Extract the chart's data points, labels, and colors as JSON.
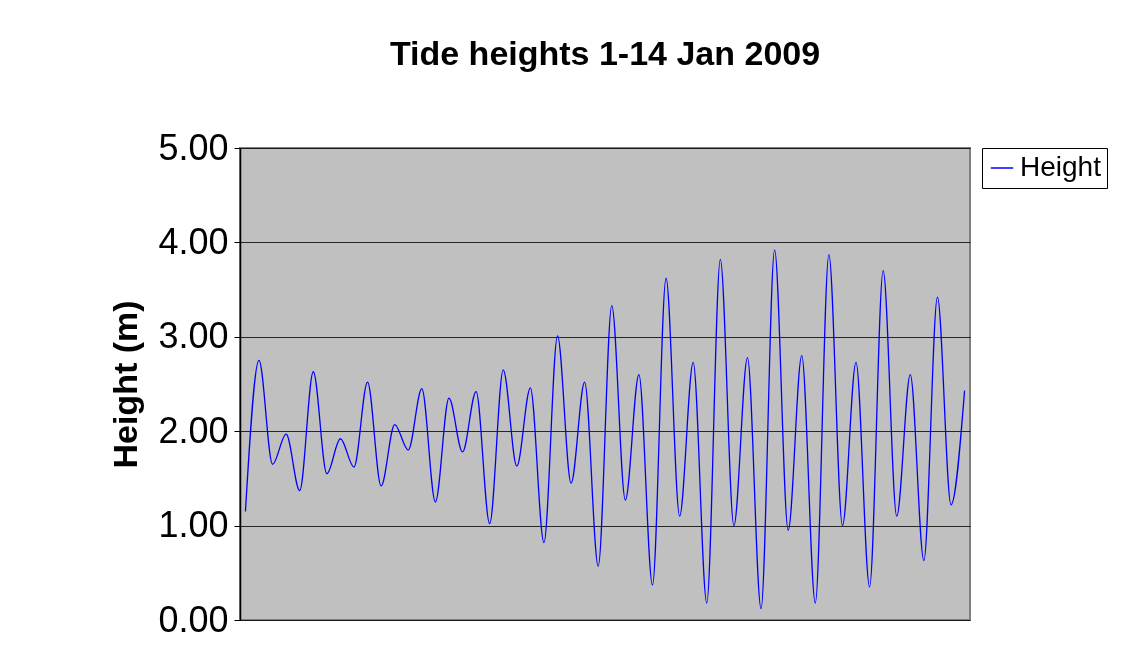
{
  "chart_data": {
    "type": "line",
    "title": "Tide heights 1-14 Jan 2009",
    "ylabel": "Height (m)",
    "categories": [
      null,
      null,
      null,
      null,
      null,
      null,
      null,
      null,
      null,
      null,
      null,
      null,
      null,
      null,
      null,
      null,
      null,
      null,
      null,
      null,
      null,
      null,
      null,
      null,
      null,
      null,
      null,
      null,
      null,
      null,
      null,
      null,
      null,
      null,
      null,
      null,
      null,
      null,
      null,
      null,
      null,
      null,
      null,
      null,
      null,
      null,
      null,
      null,
      null,
      null,
      null,
      null,
      null,
      null
    ],
    "series": [
      {
        "name": "Height",
        "color": "#0000ff",
        "values": [
          1.15,
          2.75,
          1.65,
          1.97,
          1.37,
          2.63,
          1.55,
          1.92,
          1.62,
          2.52,
          1.42,
          2.07,
          1.8,
          2.45,
          1.25,
          2.35,
          1.78,
          2.42,
          1.02,
          2.65,
          1.63,
          2.46,
          0.82,
          3.01,
          1.45,
          2.52,
          0.57,
          3.33,
          1.27,
          2.6,
          0.37,
          3.62,
          1.1,
          2.73,
          0.18,
          3.82,
          1.0,
          2.78,
          0.12,
          3.92,
          0.95,
          2.8,
          0.18,
          3.87,
          1.0,
          2.73,
          0.35,
          3.7,
          1.1,
          2.6,
          0.63,
          3.42,
          1.22,
          2.43
        ]
      }
    ],
    "ylim": [
      0,
      5
    ],
    "yticks": [
      {
        "value": 0,
        "label": "0.00"
      },
      {
        "value": 1,
        "label": "1.00"
      },
      {
        "value": 2,
        "label": "2.00"
      },
      {
        "value": 3,
        "label": "3.00"
      },
      {
        "value": 4,
        "label": "4.00"
      },
      {
        "value": 5,
        "label": "5.00"
      }
    ],
    "grid": "y",
    "legend": "right",
    "tick_labels": "y"
  }
}
